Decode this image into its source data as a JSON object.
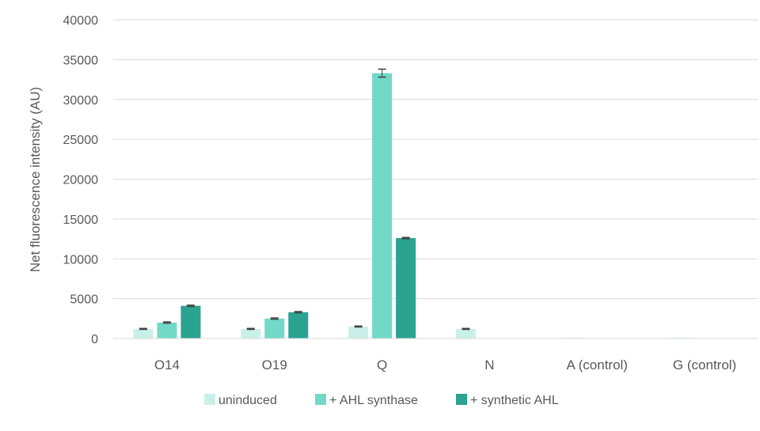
{
  "chart_data": {
    "type": "bar",
    "title": "",
    "xlabel": "",
    "ylabel": "Net fluorescence intensity (AU)",
    "ylim": [
      0,
      40000
    ],
    "yticks": [
      0,
      5000,
      10000,
      15000,
      20000,
      25000,
      30000,
      35000,
      40000
    ],
    "grid": true,
    "legend_position": "bottom",
    "categories": [
      "O14",
      "O19",
      "Q",
      "N",
      "A (control)",
      "G (control)"
    ],
    "series": [
      {
        "name": "uninduced",
        "color": "#c9f0e8",
        "values": [
          1200,
          1200,
          1500,
          1200,
          100,
          100
        ],
        "errors": [
          60,
          60,
          60,
          60,
          0,
          0
        ]
      },
      {
        "name": "+ AHL synthase",
        "color": "#72d9c8",
        "values": [
          2000,
          2500,
          33300,
          0,
          0,
          0
        ],
        "errors": [
          80,
          80,
          500,
          0,
          0,
          0
        ]
      },
      {
        "name": "+ synthetic AHL",
        "color": "#2aa391",
        "values": [
          4100,
          3300,
          12600,
          0,
          0,
          0
        ],
        "errors": [
          80,
          80,
          80,
          0,
          0,
          0
        ]
      }
    ]
  }
}
